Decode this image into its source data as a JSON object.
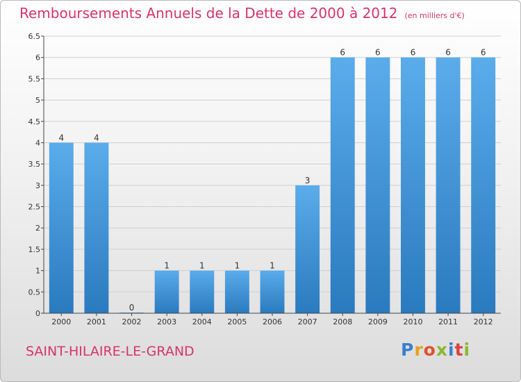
{
  "title": "Remboursements Annuels de la Dette de 2000 à 2012",
  "subtitle": "(en milliers d'€)",
  "commune": "SAINT-HILAIRE-LE-GRAND",
  "logo": {
    "letters": [
      "P",
      "r",
      "o",
      "x",
      "i",
      "t",
      "i"
    ]
  },
  "colors": {
    "bar_top": "#5aacea",
    "bar_bottom": "#2a7abf",
    "title": "#d6336c",
    "grid": "#cfcfcf"
  },
  "chart_data": {
    "type": "bar",
    "categories": [
      "2000",
      "2001",
      "2002",
      "2003",
      "2004",
      "2005",
      "2006",
      "2007",
      "2008",
      "2009",
      "2010",
      "2011",
      "2012"
    ],
    "values": [
      4,
      4,
      0,
      1,
      1,
      1,
      1,
      3,
      6,
      6,
      6,
      6,
      6
    ],
    "data_labels": [
      "4",
      "4",
      "0",
      "1",
      "1",
      "1",
      "1",
      "3",
      "6",
      "6",
      "6",
      "6",
      "6"
    ],
    "yticks": [
      "0",
      "0.5",
      "1",
      "1.5",
      "2",
      "2.5",
      "3",
      "3.5",
      "4",
      "4.5",
      "5",
      "5.5",
      "6",
      "6.5"
    ],
    "ylim": [
      0,
      6.5
    ],
    "grid": true,
    "xlabel": "",
    "ylabel": ""
  }
}
